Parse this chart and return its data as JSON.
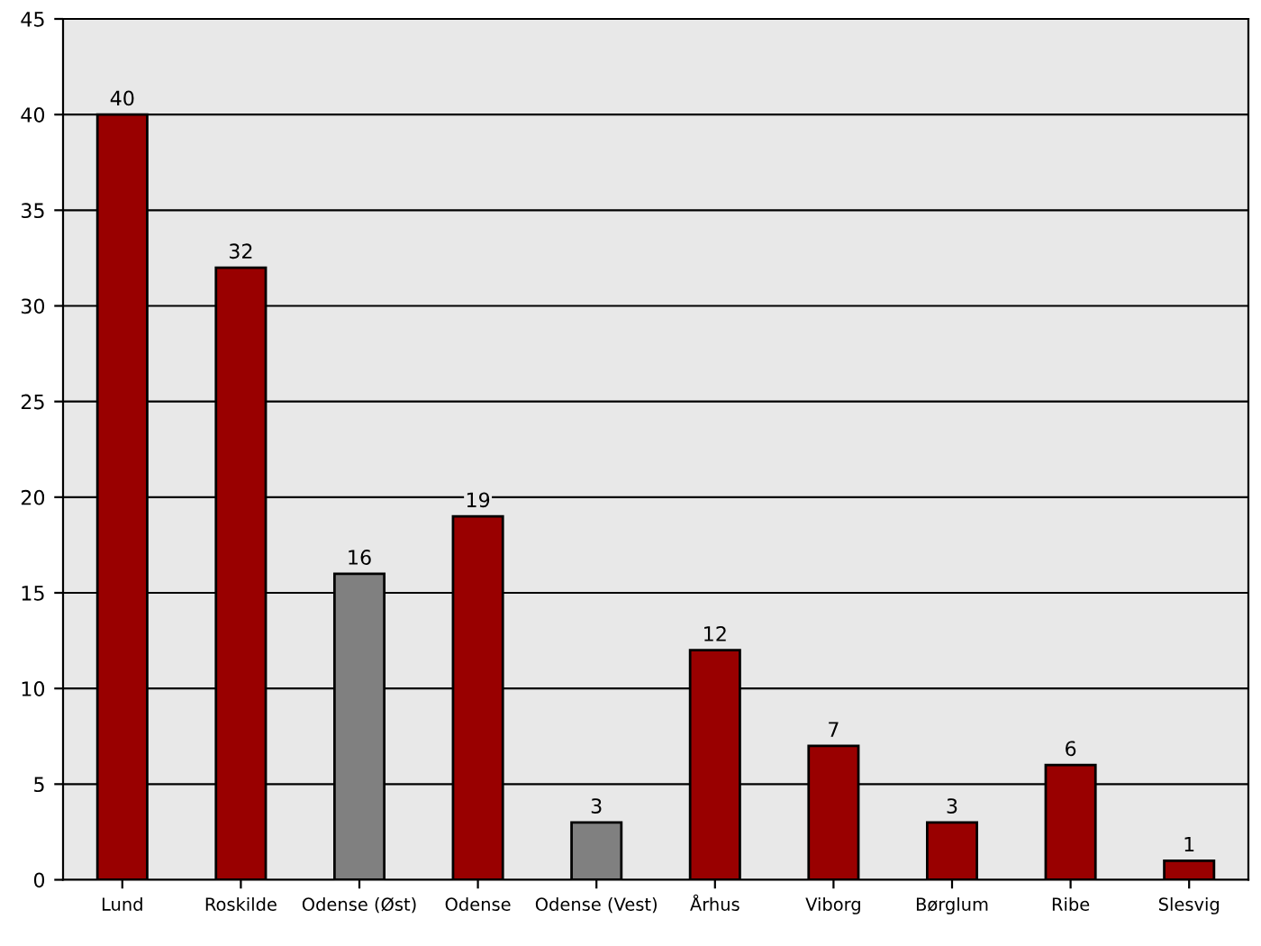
{
  "chart_data": {
    "type": "bar",
    "categories": [
      "Lund",
      "Roskilde",
      "Odense (Øst)",
      "Odense",
      "Odense (Vest)",
      "Århus",
      "Viborg",
      "Børglum",
      "Ribe",
      "Slesvig"
    ],
    "values": [
      40,
      32,
      16,
      19,
      3,
      12,
      7,
      3,
      6,
      1
    ],
    "colors": [
      "#990000",
      "#990000",
      "#808080",
      "#990000",
      "#808080",
      "#990000",
      "#990000",
      "#990000",
      "#990000",
      "#990000"
    ],
    "ylim": [
      0,
      45
    ],
    "yticks": [
      0,
      5,
      10,
      15,
      20,
      25,
      30,
      35,
      40,
      45
    ],
    "grid": "y",
    "data_labels": true
  }
}
